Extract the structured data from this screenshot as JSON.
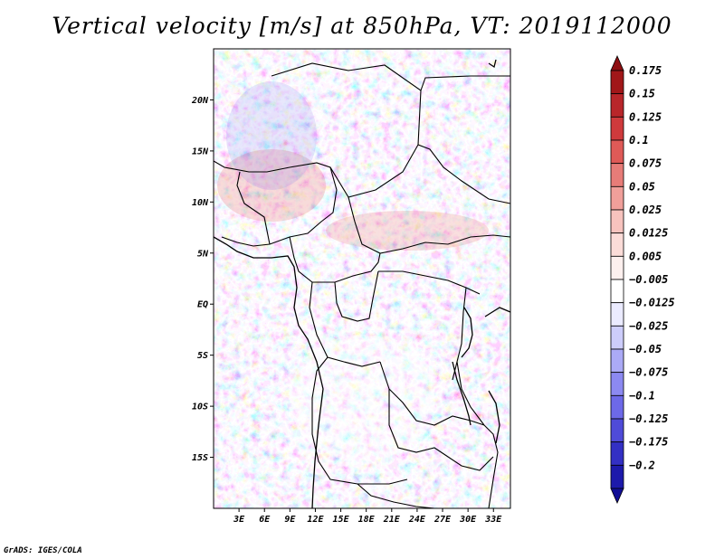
{
  "title": "Vertical velocity [m/s] at 850hPa, VT: 2019112000",
  "credit": "GrADS: IGES/COLA",
  "map": {
    "lon_range": [
      0,
      35
    ],
    "lat_range": [
      -20,
      25
    ],
    "lat_ticks": [
      {
        "value": 20,
        "label": "20N"
      },
      {
        "value": 15,
        "label": "15N"
      },
      {
        "value": 10,
        "label": "10N"
      },
      {
        "value": 5,
        "label": "5N"
      },
      {
        "value": 0,
        "label": "EQ"
      },
      {
        "value": -5,
        "label": "5S"
      },
      {
        "value": -10,
        "label": "10S"
      },
      {
        "value": -15,
        "label": "15S"
      }
    ],
    "lon_ticks": [
      {
        "value": 3,
        "label": "3E"
      },
      {
        "value": 6,
        "label": "6E"
      },
      {
        "value": 9,
        "label": "9E"
      },
      {
        "value": 12,
        "label": "12E"
      },
      {
        "value": 15,
        "label": "15E"
      },
      {
        "value": 18,
        "label": "18E"
      },
      {
        "value": 21,
        "label": "21E"
      },
      {
        "value": 24,
        "label": "24E"
      },
      {
        "value": 27,
        "label": "27E"
      },
      {
        "value": 30,
        "label": "30E"
      },
      {
        "value": 33,
        "label": "33E"
      }
    ]
  },
  "colorbar": {
    "levels": [
      {
        "label": "0.175",
        "color": "#a11719"
      },
      {
        "label": "0.15",
        "color": "#b8262a"
      },
      {
        "label": "0.125",
        "color": "#cf3a3c"
      },
      {
        "label": "0.1",
        "color": "#df5a57"
      },
      {
        "label": "0.075",
        "color": "#e77c78"
      },
      {
        "label": "0.05",
        "color": "#f09f9a"
      },
      {
        "label": "0.025",
        "color": "#f7c3be"
      },
      {
        "label": "0.0125",
        "color": "#fbdcd8"
      },
      {
        "label": "0.005",
        "color": "#fdf0ee"
      },
      {
        "label": "−0.005",
        "color": "#ffffff"
      },
      {
        "label": "−0.0125",
        "color": "#ebebff"
      },
      {
        "label": "−0.025",
        "color": "#cdcdfb"
      },
      {
        "label": "−0.05",
        "color": "#abaaf6"
      },
      {
        "label": "−0.075",
        "color": "#8c89f1"
      },
      {
        "label": "−0.1",
        "color": "#6d69e8"
      },
      {
        "label": "−0.125",
        "color": "#4f4bd8"
      },
      {
        "label": "−0.175",
        "color": "#3330c4"
      },
      {
        "label": "−0.2",
        "color": "#1d1aab"
      }
    ],
    "top_cap_color": "#8e0f12",
    "bottom_cap_color": "#120f96"
  }
}
